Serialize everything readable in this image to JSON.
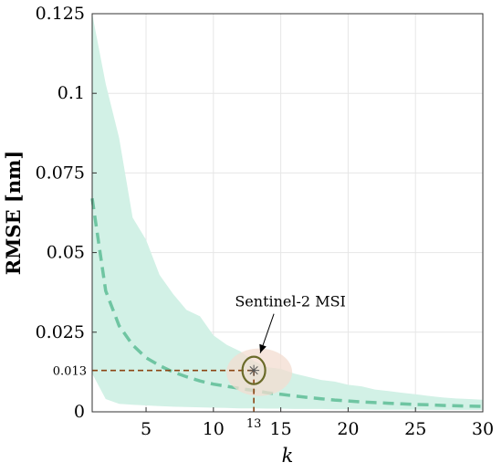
{
  "chart_data": {
    "type": "line",
    "xlabel": "k",
    "ylabel": "RMSE [nm]",
    "xlim": [
      1,
      30
    ],
    "ylim": [
      0,
      0.125
    ],
    "xticks": [
      5,
      10,
      15,
      20,
      25,
      30
    ],
    "yticks": [
      0,
      0.025,
      0.05,
      0.075,
      0.1,
      0.125
    ],
    "ytick_labels": [
      "0",
      "0.025",
      "0.05",
      "0.075",
      "0.1",
      "0.125"
    ],
    "grid": true,
    "colors": {
      "band": "#d2f1e6",
      "mean_line": "#6fc5a2",
      "reference": "#8b4513",
      "marker": "#6b6b2a",
      "highlight": "#f3dcd0"
    },
    "series": [
      {
        "style": "dashed",
        "x": [
          1,
          2,
          3,
          4,
          5,
          6,
          7,
          8,
          9,
          10,
          11,
          12,
          13,
          14,
          15,
          16,
          17,
          18,
          19,
          20,
          21,
          22,
          23,
          24,
          25,
          26,
          27,
          28,
          29,
          30
        ],
        "values": [
          0.067,
          0.038,
          0.027,
          0.021,
          0.017,
          0.0145,
          0.0125,
          0.011,
          0.0097,
          0.0087,
          0.008,
          0.0073,
          0.0067,
          0.006,
          0.0055,
          0.005,
          0.0045,
          0.0041,
          0.0037,
          0.0034,
          0.0031,
          0.0029,
          0.0027,
          0.0025,
          0.0023,
          0.0022,
          0.002,
          0.0019,
          0.0018,
          0.0017
        ]
      }
    ],
    "band": {
      "x": [
        1,
        2,
        3,
        4,
        5,
        6,
        7,
        8,
        9,
        10,
        11,
        12,
        13,
        14,
        15,
        16,
        17,
        18,
        19,
        20,
        21,
        22,
        23,
        24,
        25,
        26,
        27,
        28,
        29,
        30
      ],
      "upper": [
        0.125,
        0.103,
        0.086,
        0.061,
        0.054,
        0.043,
        0.037,
        0.032,
        0.03,
        0.024,
        0.021,
        0.019,
        0.016,
        0.014,
        0.0135,
        0.012,
        0.011,
        0.01,
        0.0095,
        0.0085,
        0.008,
        0.007,
        0.0065,
        0.006,
        0.0055,
        0.005,
        0.0045,
        0.0042,
        0.004,
        0.0038
      ],
      "lower": [
        0.012,
        0.004,
        0.0025,
        0.0022,
        0.002,
        0.0018,
        0.0016,
        0.0015,
        0.0014,
        0.0013,
        0.0012,
        0.0011,
        0.0011,
        0.001,
        0.001,
        0.0009,
        0.0009,
        0.0009,
        0.0008,
        0.0008,
        0.0008,
        0.0007,
        0.0007,
        0.0007,
        0.0007,
        0.0006,
        0.0006,
        0.0006,
        0.0006,
        0.0006
      ]
    },
    "reference_point": {
      "x": 13,
      "y": 0.013,
      "x_label": "13",
      "y_label": "0.013"
    },
    "annotations": [
      {
        "text": "Sentinel-2 MSI",
        "x": 13,
        "y": 0.013
      }
    ]
  }
}
